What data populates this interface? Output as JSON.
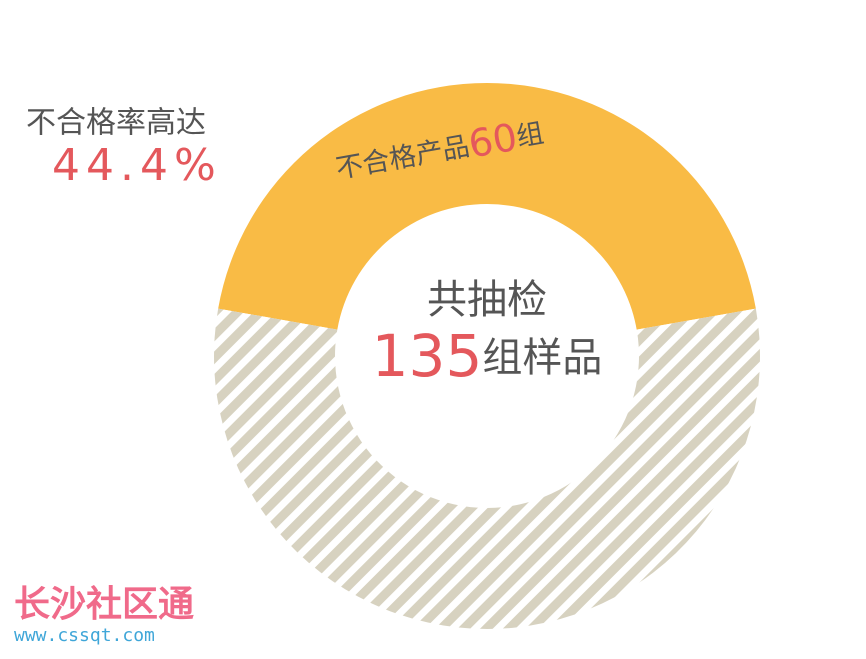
{
  "chart_data": {
    "type": "donut",
    "categories": [
      "不合格产品",
      null
    ],
    "values": [
      60,
      75
    ],
    "colors": [
      "#f9bb45",
      "#d7d2c0"
    ],
    "hatched": [
      false,
      true
    ],
    "unit": "组",
    "center_title": "共抽检",
    "total": 135,
    "total_suffix": "组样品",
    "rate_title": "不合格率高达",
    "rate": {
      "value": 44.4,
      "label": "44.4%"
    }
  },
  "watermark": {
    "name": "长沙社区通",
    "url": "www.cssqt.com"
  }
}
